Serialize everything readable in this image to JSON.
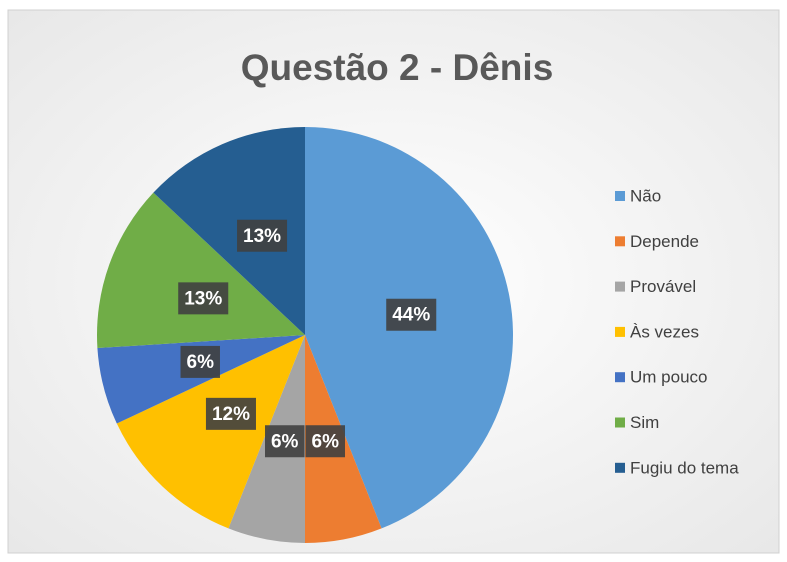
{
  "chart_data": {
    "type": "pie",
    "title": "Questão 2 - Dênis",
    "categories": [
      "Não",
      "Depende",
      "Provável",
      "Às vezes",
      "Um pouco",
      "Sim",
      "Fugiu do tema"
    ],
    "values": [
      44,
      6,
      6,
      12,
      6,
      13,
      13
    ],
    "value_labels": [
      "44%",
      "6%",
      "6%",
      "12%",
      "6%",
      "13%",
      "13%"
    ],
    "colors": [
      "#5b9bd5",
      "#ed7d31",
      "#a5a5a5",
      "#ffc000",
      "#4472c4",
      "#70ad47",
      "#255e91"
    ],
    "legend": "right"
  }
}
